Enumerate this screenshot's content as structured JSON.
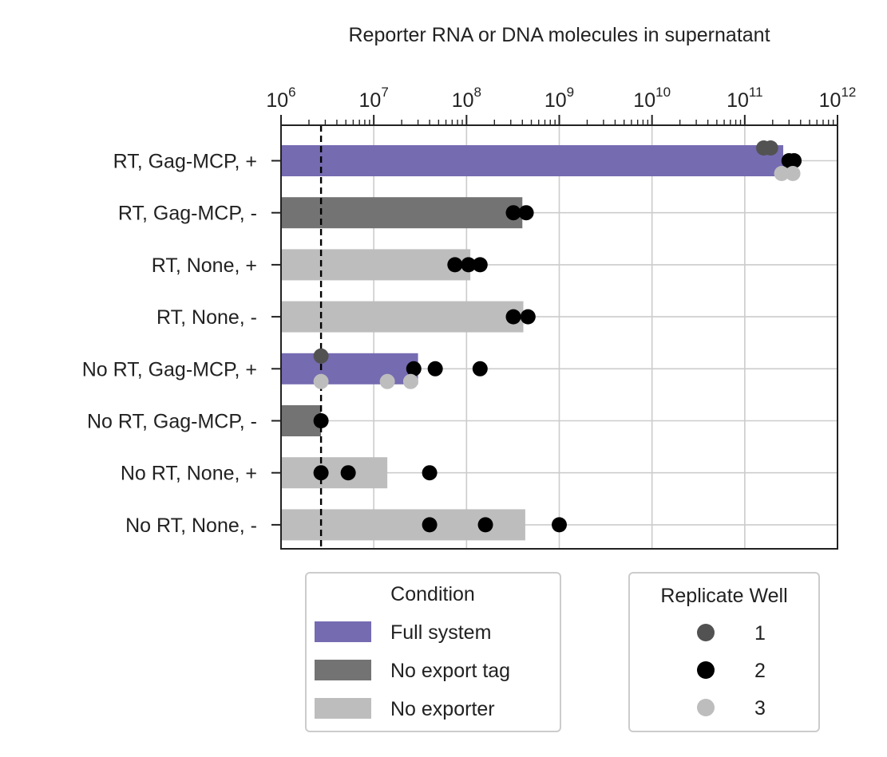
{
  "chart_data": {
    "type": "bar",
    "orientation": "horizontal",
    "title": "Reporter RNA or DNA molecules in supernatant",
    "xlabel": "Reporter RNA or DNA molecules in supernatant",
    "ylabel": "",
    "x_scale": "log",
    "xlim": [
      1000000,
      1000000000000
    ],
    "x_ticks": [
      {
        "base": "10",
        "exp": "6"
      },
      {
        "base": "10",
        "exp": "7"
      },
      {
        "base": "10",
        "exp": "8"
      },
      {
        "base": "10",
        "exp": "9"
      },
      {
        "base": "10",
        "exp": "10"
      },
      {
        "base": "10",
        "exp": "11"
      },
      {
        "base": "10",
        "exp": "12"
      }
    ],
    "x_axis_position": "top",
    "grid": true,
    "threshold_line": 2700000,
    "categories": [
      "RT, Gag-MCP, +",
      "RT, Gag-MCP, -",
      "RT, None, +",
      "RT, None, -",
      "No RT, Gag-MCP, +",
      "No RT, Gag-MCP, -",
      "No RT, None, +",
      "No RT, None, -"
    ],
    "bar_values": [
      260000000000,
      400000000,
      110000000,
      410000000,
      30000000,
      2700000,
      14000000,
      430000000
    ],
    "bar_condition": [
      "Full system",
      "No export tag",
      "No exporter",
      "No exporter",
      "Full system",
      "No export tag",
      "No exporter",
      "No exporter"
    ],
    "replicates": [
      {
        "category": "RT, Gag-MCP, +",
        "well": 1,
        "values": [
          160000000000,
          190000000000
        ]
      },
      {
        "category": "RT, Gag-MCP, +",
        "well": 2,
        "values": [
          300000000000,
          340000000000
        ]
      },
      {
        "category": "RT, Gag-MCP, +",
        "well": 3,
        "values": [
          250000000000,
          330000000000
        ]
      },
      {
        "category": "RT, Gag-MCP, -",
        "well": 2,
        "values": [
          320000000,
          440000000
        ]
      },
      {
        "category": "RT, None, +",
        "well": 2,
        "values": [
          75000000,
          105000000,
          140000000
        ]
      },
      {
        "category": "RT, None, -",
        "well": 2,
        "values": [
          320000000,
          460000000
        ]
      },
      {
        "category": "No RT, Gag-MCP, +",
        "well": 1,
        "values": [
          2700000
        ]
      },
      {
        "category": "No RT, Gag-MCP, +",
        "well": 2,
        "values": [
          27000000,
          46000000,
          140000000
        ]
      },
      {
        "category": "No RT, Gag-MCP, +",
        "well": 3,
        "values": [
          2700000,
          14000000,
          25000000
        ]
      },
      {
        "category": "No RT, Gag-MCP, -",
        "well": 2,
        "values": [
          2700000
        ]
      },
      {
        "category": "No RT, None, +",
        "well": 2,
        "values": [
          2700000,
          5300000,
          40000000
        ]
      },
      {
        "category": "No RT, None, -",
        "well": 2,
        "values": [
          40000000,
          160000000,
          1000000000
        ]
      }
    ],
    "legend_condition": {
      "title": "Condition",
      "entries": [
        {
          "label": "Full system",
          "color": "#756bb1"
        },
        {
          "label": "No export tag",
          "color": "#737373"
        },
        {
          "label": "No exporter",
          "color": "#bdbdbd"
        }
      ]
    },
    "legend_replicate": {
      "title": "Replicate Well",
      "entries": [
        {
          "label": "1",
          "color": "#525252"
        },
        {
          "label": "2",
          "color": "#000000"
        },
        {
          "label": "3",
          "color": "#bdbdbd"
        }
      ]
    },
    "legend_placement": "bottom"
  }
}
